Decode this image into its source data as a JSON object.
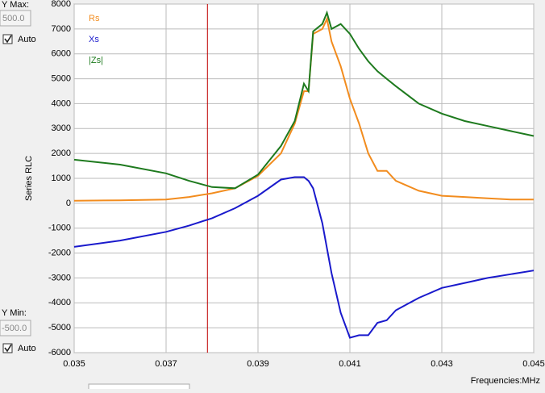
{
  "chart_data": {
    "type": "line",
    "y_axis_label": "Series RLC",
    "x_axis_label": "Frequencies:MHz",
    "controls": {
      "ymax_label": "Y Max:",
      "ymax_value": "500.0",
      "ymin_label": "Y Min:",
      "ymin_value": "-500.0",
      "auto_label": "Auto"
    },
    "x": [
      0.035,
      0.036,
      0.037,
      0.0375,
      0.038,
      0.0385,
      0.039,
      0.0395,
      0.0398,
      0.04,
      0.0401,
      0.0402,
      0.0404,
      0.0405,
      0.0406,
      0.0408,
      0.041,
      0.0412,
      0.0414,
      0.0416,
      0.0418,
      0.042,
      0.0425,
      0.043,
      0.0435,
      0.044,
      0.0445,
      0.045
    ],
    "series": [
      {
        "name": "Rs",
        "color": "#f28c1e",
        "values": [
          100,
          120,
          150,
          250,
          400,
          600,
          1100,
          2000,
          3200,
          4500,
          4500,
          6800,
          7000,
          7400,
          6500,
          5500,
          4200,
          3200,
          2000,
          1300,
          1300,
          900,
          500,
          300,
          250,
          200,
          150,
          150
        ]
      },
      {
        "name": "Xs",
        "color": "#1a1acc",
        "values": [
          -1750,
          -1500,
          -1150,
          -900,
          -600,
          -200,
          300,
          950,
          1050,
          1050,
          900,
          600,
          -800,
          -1800,
          -2800,
          -4400,
          -5400,
          -5300,
          -5300,
          -4800,
          -4700,
          -4300,
          -3800,
          -3400,
          -3200,
          -3000,
          -2850,
          -2700
        ]
      },
      {
        "name": "|Zs|",
        "color": "#1e7a1e",
        "values": [
          1750,
          1550,
          1200,
          900,
          650,
          600,
          1150,
          2300,
          3300,
          4800,
          4500,
          6900,
          7200,
          7650,
          7000,
          7200,
          6800,
          6200,
          5700,
          5300,
          5000,
          4700,
          4000,
          3600,
          3300,
          3100,
          2900,
          2700
        ]
      }
    ],
    "cursor_x": 0.0379,
    "cursor_color": "#c00000",
    "xlim": [
      0.035,
      0.045
    ],
    "xticks": [
      0.035,
      0.037,
      0.039,
      0.041,
      0.043,
      0.045
    ],
    "ylim": [
      -6000,
      8000
    ],
    "yticks": [
      -6000,
      -5000,
      -4000,
      -3000,
      -2000,
      -1000,
      0,
      1000,
      2000,
      3000,
      4000,
      5000,
      6000,
      7000,
      8000
    ],
    "grid": true
  }
}
